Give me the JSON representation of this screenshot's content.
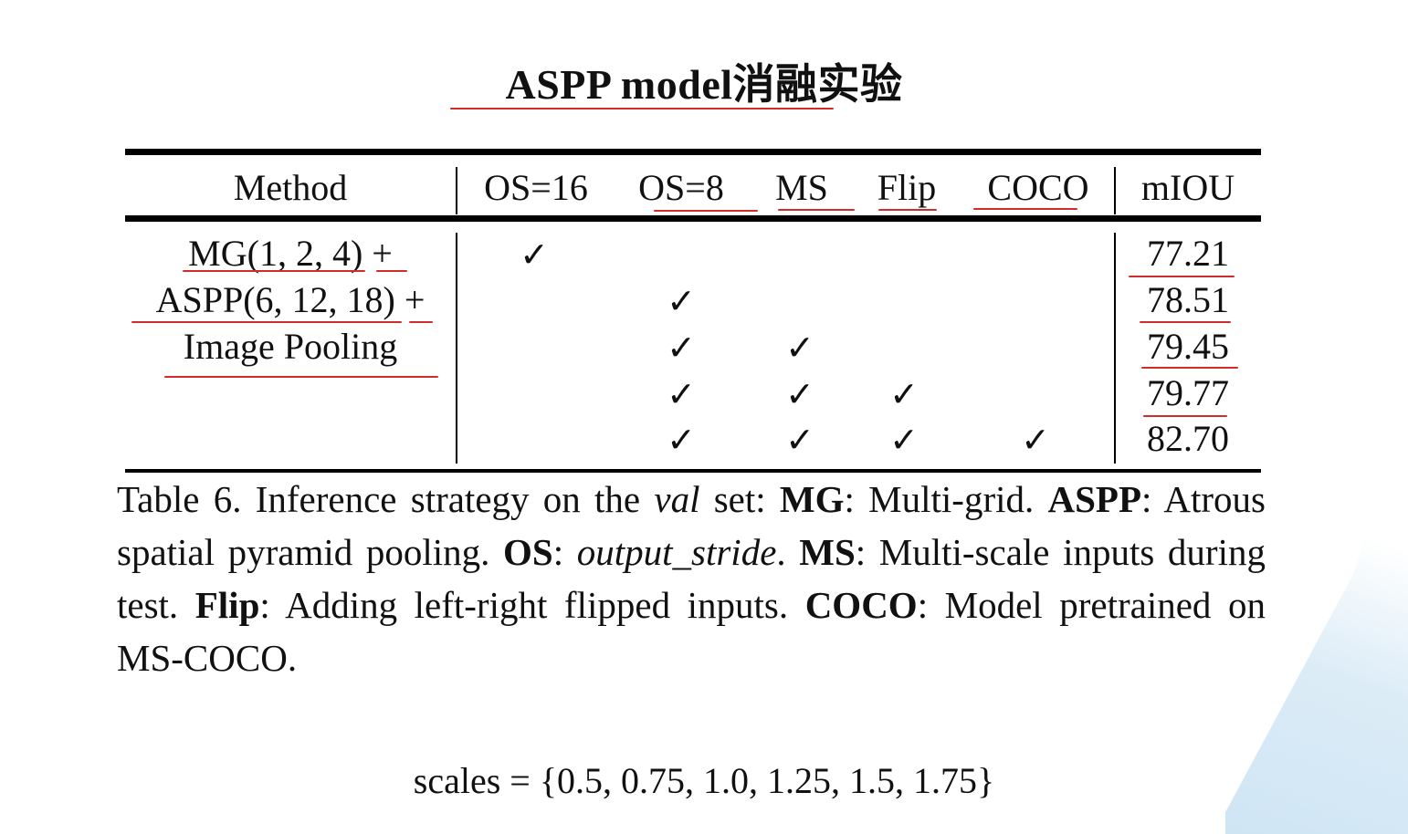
{
  "slide_title": "ASPP model消融实验",
  "table": {
    "headers": {
      "method": "Method",
      "os16": "OS=16",
      "os8": "OS=8",
      "ms": "MS",
      "flip": "Flip",
      "coco": "COCO",
      "miou": "mIOU"
    },
    "method_lines": [
      "MG(1, 2, 4) +",
      "ASPP(6, 12, 18) +",
      "Image Pooling"
    ],
    "check_glyph": "✓",
    "rows": [
      {
        "os16": true,
        "os8": false,
        "ms": false,
        "flip": false,
        "coco": false,
        "miou": "77.21"
      },
      {
        "os16": false,
        "os8": true,
        "ms": false,
        "flip": false,
        "coco": false,
        "miou": "78.51"
      },
      {
        "os16": false,
        "os8": true,
        "ms": true,
        "flip": false,
        "coco": false,
        "miou": "79.45"
      },
      {
        "os16": false,
        "os8": true,
        "ms": true,
        "flip": true,
        "coco": false,
        "miou": "79.77"
      },
      {
        "os16": false,
        "os8": true,
        "ms": true,
        "flip": true,
        "coco": true,
        "miou": "82.70"
      }
    ]
  },
  "caption": {
    "p1": "Table 6. Inference strategy on the ",
    "val": "val",
    "p2": " set: ",
    "mg": "MG",
    "p3": ": Multi-grid. ",
    "aspp": "ASPP",
    "p4": ": Atrous spatial pyramid pooling. ",
    "os": "OS",
    "p5": ": ",
    "output_stride": "output_stride",
    "p6": ". ",
    "ms": "MS",
    "p7": ": Multi-scale inputs during test. ",
    "flip": "Flip",
    "p8": ": Adding left-right flipped inputs. ",
    "coco": "COCO",
    "p9": ": Model pretrained on MS-COCO."
  },
  "scales_text": "scales = {0.5, 0.75, 1.0, 1.25, 1.5, 1.75}",
  "colors": {
    "annotation_red": "#d12b2b",
    "rule_black": "#000000"
  }
}
